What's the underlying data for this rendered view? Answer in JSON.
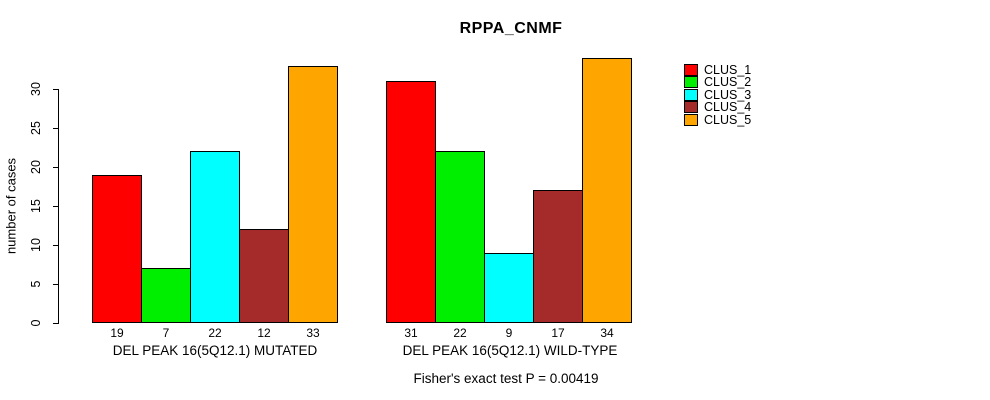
{
  "chart_data": {
    "type": "bar",
    "title": "RPPA_CNMF",
    "xlabel": "",
    "ylabel": "number of cases",
    "yticks": [
      0,
      5,
      10,
      15,
      20,
      25,
      30
    ],
    "ylim": [
      0,
      34
    ],
    "grid": false,
    "legend_position": "top-right",
    "categories": [
      "DEL PEAK 16(5Q12.1) MUTATED",
      "DEL PEAK 16(5Q12.1) WILD-TYPE"
    ],
    "series": [
      {
        "name": "CLUS_1",
        "color": "#FF0000",
        "values": [
          19,
          31
        ]
      },
      {
        "name": "CLUS_2",
        "color": "#00EE00",
        "values": [
          7,
          22
        ]
      },
      {
        "name": "CLUS_3",
        "color": "#00FFFF",
        "values": [
          22,
          9
        ]
      },
      {
        "name": "CLUS_4",
        "color": "#A52A2A",
        "values": [
          12,
          17
        ]
      },
      {
        "name": "CLUS_5",
        "color": "#FFA500",
        "values": [
          33,
          34
        ]
      }
    ],
    "bar_value_labels_shown": true,
    "footer": "Fisher's exact test P = 0.00419"
  }
}
